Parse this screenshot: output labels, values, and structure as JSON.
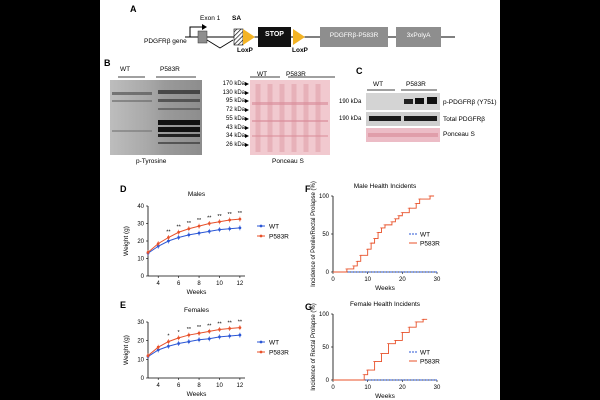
{
  "colors": {
    "wt": "#2b57d6",
    "p583r": "#e8512a",
    "loxp": "#f3b324",
    "stop": "#111111",
    "construct": "#8e8e8e",
    "ponceau": "#f1c9cf"
  },
  "panelA": {
    "letter": "A",
    "promoter_label": "PDGFRβ gene",
    "exon_label": "Exon 1",
    "sa_label": "SA",
    "stop_label": "STOP",
    "loxp_left": "LoxP",
    "loxp_right": "LoxP",
    "cds_label": "PDGFRβ-P583R",
    "polya_label": "3xPolyA"
  },
  "panelB": {
    "letter": "B",
    "left_lanes": [
      "WT",
      "P583R"
    ],
    "right_lanes": [
      "WT",
      "P583R"
    ],
    "markers": [
      "170 kDa",
      "130 kDa",
      "95 kDa",
      "72 kDa",
      "55 kDa",
      "43 kDa",
      "34 kDa",
      "26 kDa"
    ],
    "left_caption": "p-Tyrosine",
    "right_caption": "Ponceau S"
  },
  "panelC": {
    "letter": "C",
    "lanes": [
      "WT",
      "P583R"
    ],
    "rows": [
      {
        "mw": "190 kDa",
        "label": "p-PDGFRβ (Y751)"
      },
      {
        "mw": "190 kDa",
        "label": "Total PDGFRβ"
      },
      {
        "mw": "",
        "label": "Ponceau S"
      }
    ]
  },
  "chart_data": [
    {
      "panel": "D",
      "type": "line",
      "title": "Males",
      "xlabel": "Weeks",
      "ylabel": "Weight (g)",
      "xlim": [
        3,
        12.5
      ],
      "ylim": [
        0,
        40
      ],
      "xticks": [
        4,
        6,
        8,
        10,
        12
      ],
      "yticks": [
        0,
        10,
        20,
        30,
        40
      ],
      "x": [
        3,
        4,
        5,
        6,
        7,
        8,
        9,
        10,
        11,
        12
      ],
      "series": [
        {
          "name": "WT",
          "values": [
            13,
            17,
            20,
            22,
            23.5,
            24.5,
            25.5,
            26.5,
            27,
            27.5
          ]
        },
        {
          "name": "P583R",
          "values": [
            13.5,
            18.5,
            22,
            25,
            27,
            28.5,
            30,
            31,
            32,
            32.5
          ]
        }
      ],
      "significance": [
        "**",
        "**",
        "**",
        "**",
        "**",
        "**",
        "**",
        "**"
      ]
    },
    {
      "panel": "E",
      "type": "line",
      "title": "Females",
      "xlabel": "Weeks",
      "ylabel": "Weight (g)",
      "xlim": [
        3,
        12.5
      ],
      "ylim": [
        0,
        30
      ],
      "xticks": [
        4,
        6,
        8,
        10,
        12
      ],
      "yticks": [
        0,
        10,
        20,
        30
      ],
      "x": [
        3,
        4,
        5,
        6,
        7,
        8,
        9,
        10,
        11,
        12
      ],
      "series": [
        {
          "name": "WT",
          "values": [
            11.5,
            15,
            17,
            18.5,
            19.5,
            20.5,
            21,
            22,
            22.5,
            23
          ]
        },
        {
          "name": "P583R",
          "values": [
            12,
            16.5,
            19.5,
            21.5,
            23,
            24,
            25,
            26,
            26.5,
            27
          ]
        }
      ],
      "significance": [
        "*",
        "*",
        "**",
        "**",
        "**",
        "**",
        "**",
        "**"
      ]
    },
    {
      "panel": "F",
      "type": "line",
      "title": "Male Health Incidents",
      "xlabel": "Weeks",
      "ylabel": "Incidence of Penile/Rectal Prolapse (%)",
      "xlim": [
        0,
        30
      ],
      "ylim": [
        0,
        100
      ],
      "xticks": [
        0,
        10,
        20,
        30
      ],
      "yticks": [
        0,
        50,
        100
      ],
      "series": [
        {
          "name": "WT",
          "x": [
            0,
            30
          ],
          "values": [
            0,
            0
          ]
        },
        {
          "name": "P583R",
          "x": [
            0,
            4,
            6,
            7,
            8,
            10,
            11,
            12,
            13,
            14,
            15,
            17,
            18,
            19,
            20,
            22,
            24,
            25,
            28
          ],
          "values": [
            0,
            4,
            8,
            14,
            22,
            30,
            38,
            44,
            52,
            58,
            62,
            66,
            70,
            74,
            78,
            84,
            90,
            96,
            100
          ]
        }
      ]
    },
    {
      "panel": "G",
      "type": "line",
      "title": "Female Health Incidents",
      "xlabel": "Weeks",
      "ylabel": "Incidence of Rectal Prolapse (%)",
      "xlim": [
        0,
        30
      ],
      "ylim": [
        0,
        100
      ],
      "xticks": [
        0,
        10,
        20,
        30
      ],
      "yticks": [
        0,
        50,
        100
      ],
      "series": [
        {
          "name": "WT",
          "x": [
            0,
            30
          ],
          "values": [
            0,
            0
          ]
        },
        {
          "name": "P583R",
          "x": [
            0,
            9,
            10,
            12,
            14,
            16,
            18,
            20,
            22,
            24,
            26
          ],
          "values": [
            0,
            8,
            15,
            28,
            40,
            55,
            60,
            72,
            80,
            88,
            92
          ]
        }
      ]
    }
  ]
}
